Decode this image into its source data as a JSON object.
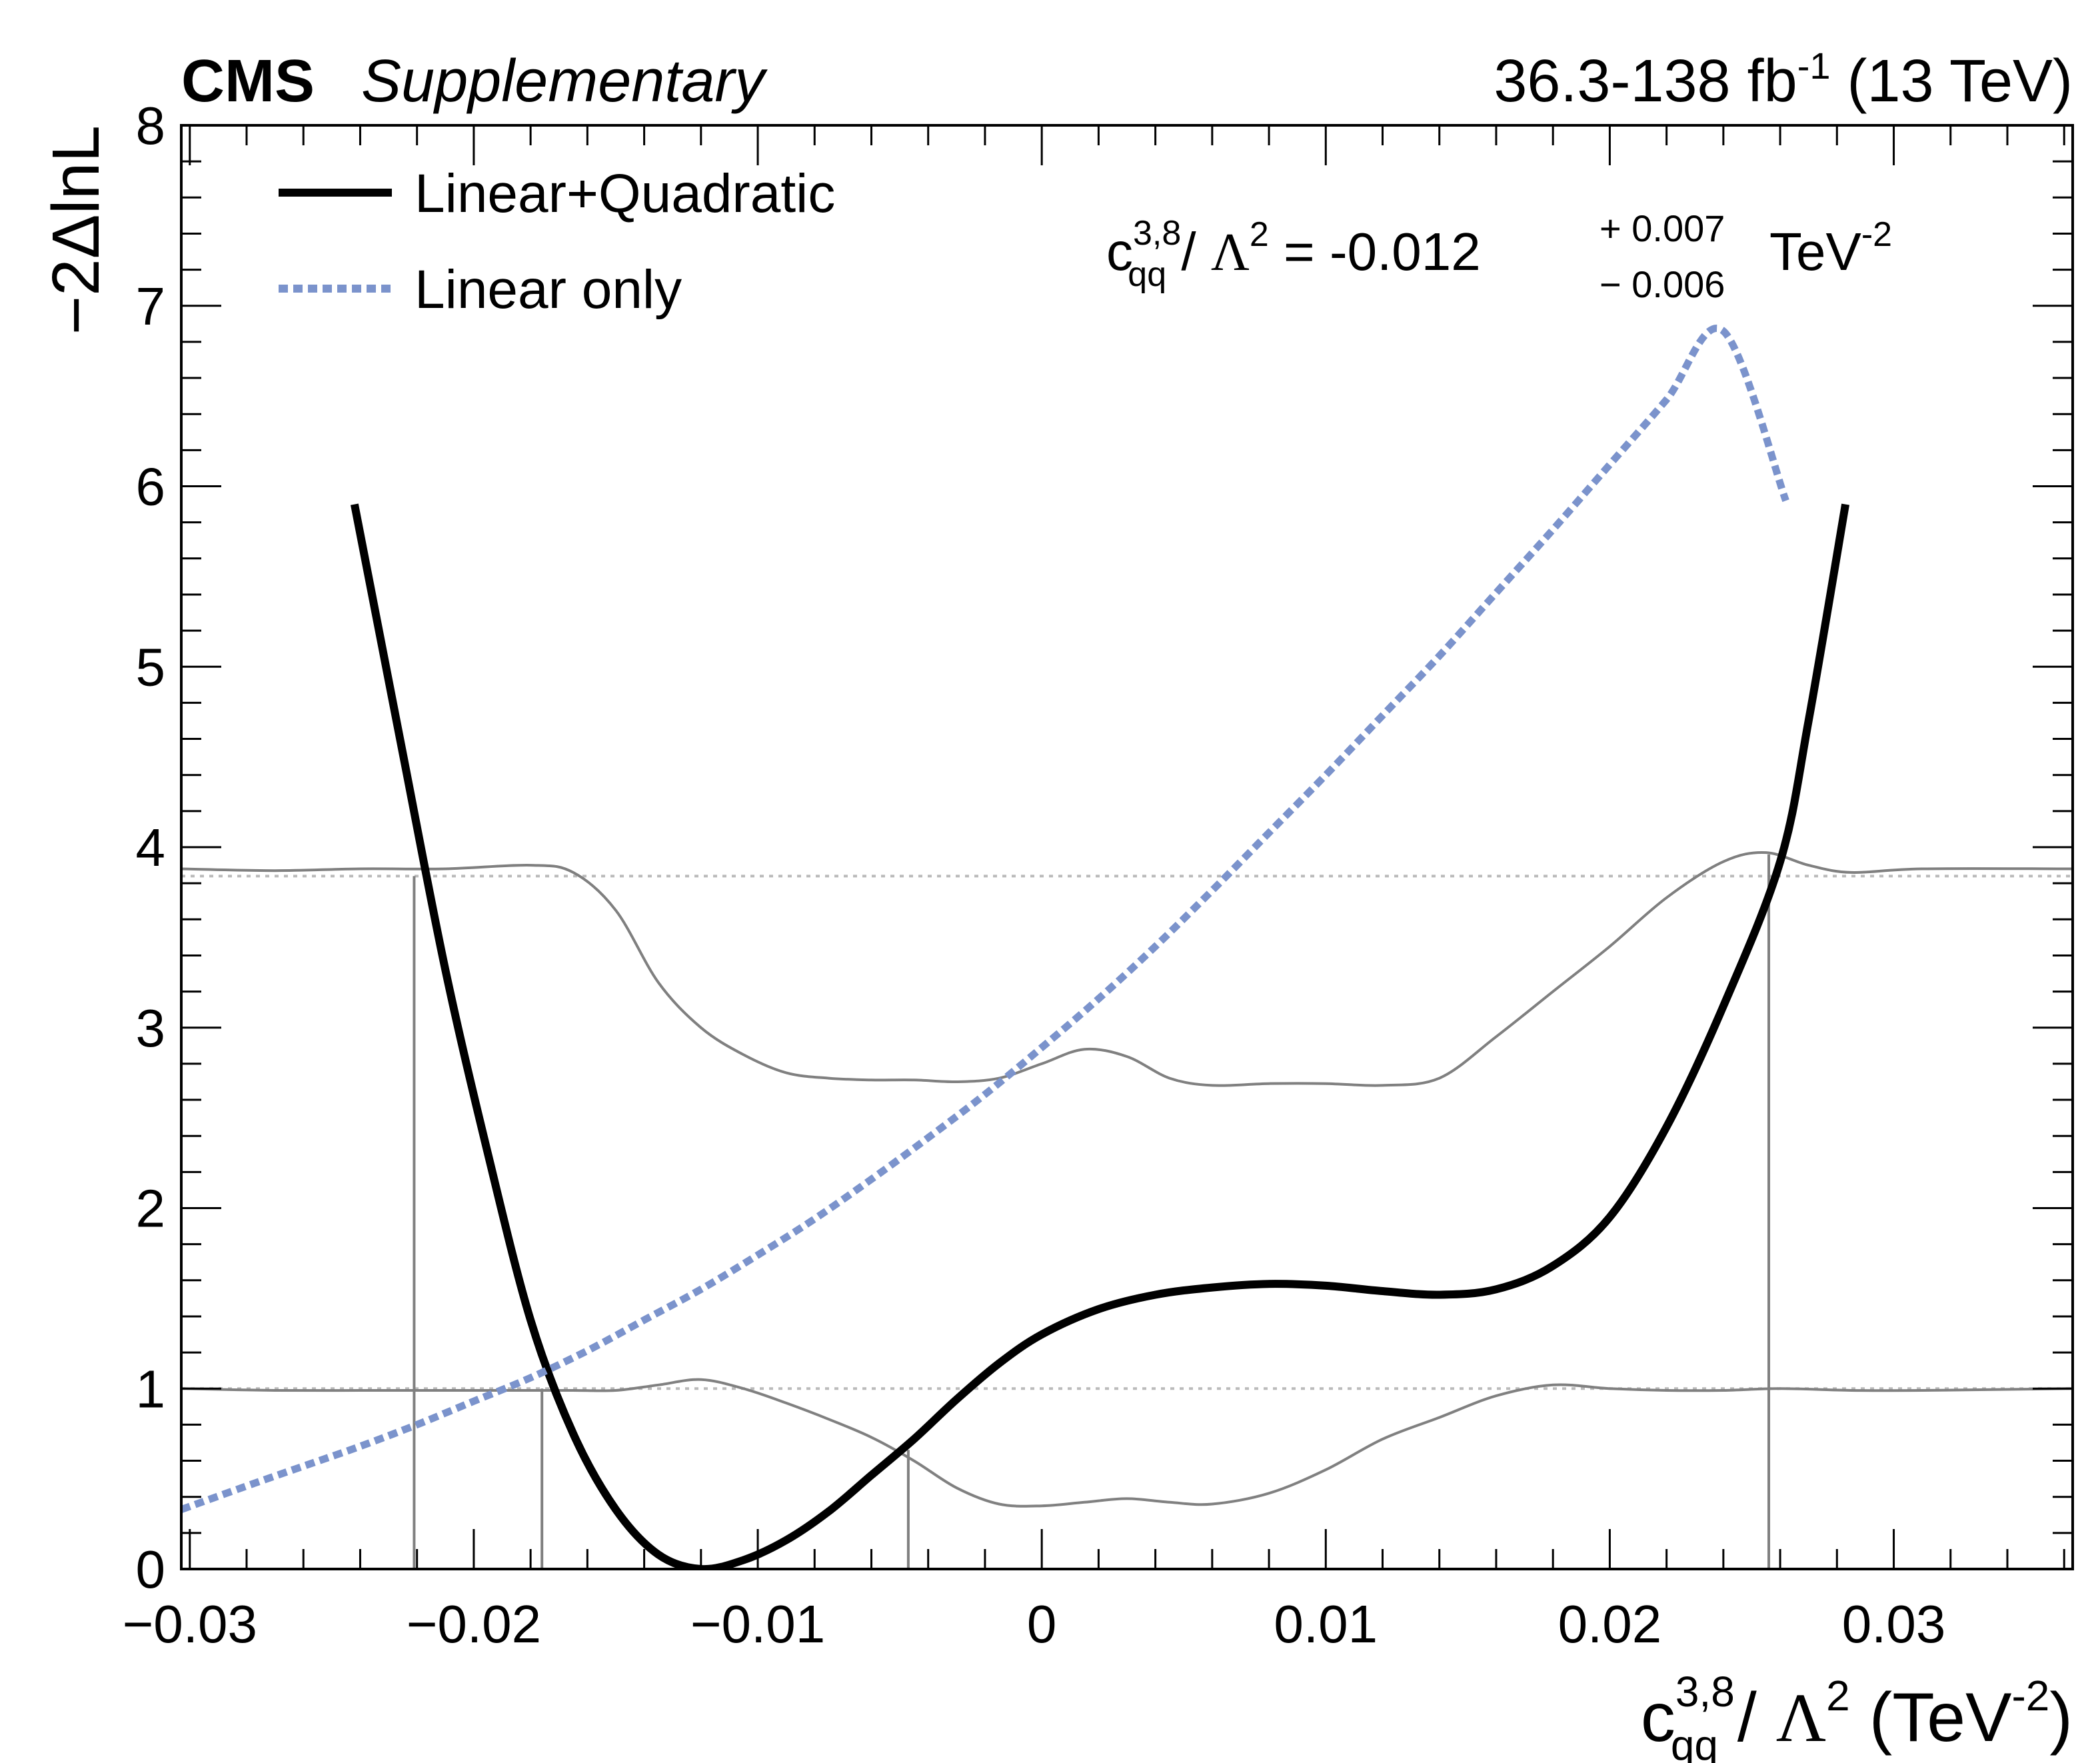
{
  "header": {
    "experiment": "CMS",
    "tag": "Supplementary",
    "lumi_range": "36.3-138 fb",
    "lumi_exp": "-1",
    "energy": " (13 TeV)"
  },
  "annotation": {
    "coef_base": "c",
    "coef_sup": "3,8",
    "coef_sub": "qq",
    "divider": " / ",
    "lambda": "Λ",
    "lambda_exp": "2",
    "equals_value": " = -0.012",
    "err_up": "+ 0.007",
    "err_down": "− 0.006",
    "unit": " TeV",
    "unit_exp": "-2"
  },
  "chart_data": {
    "type": "line",
    "xlabel": {
      "base": "c",
      "sup": "3,8",
      "sub": "qq",
      "rest": " / ",
      "lambda": "Λ",
      "lambda_exp": "2",
      "unit_open": " (TeV",
      "unit_exp": "-2",
      "unit_close": ")"
    },
    "ylabel": "−2ΔlnL",
    "xlim": [
      -0.0303,
      0.0363
    ],
    "ylim": [
      0,
      8
    ],
    "x_ticks": [
      {
        "value": -0.03,
        "label": "−0.03"
      },
      {
        "value": -0.02,
        "label": "−0.02"
      },
      {
        "value": -0.01,
        "label": "−0.01"
      },
      {
        "value": 0,
        "label": "0"
      },
      {
        "value": 0.01,
        "label": "0.01"
      },
      {
        "value": 0.02,
        "label": "0.02"
      },
      {
        "value": 0.03,
        "label": "0.03"
      }
    ],
    "y_ticks": [
      {
        "value": 0,
        "label": "0"
      },
      {
        "value": 1,
        "label": "1"
      },
      {
        "value": 2,
        "label": "2"
      },
      {
        "value": 3,
        "label": "3"
      },
      {
        "value": 4,
        "label": "4"
      },
      {
        "value": 5,
        "label": "5"
      },
      {
        "value": 6,
        "label": "6"
      },
      {
        "value": 7,
        "label": "7"
      },
      {
        "value": 8,
        "label": "8"
      }
    ],
    "legend_position": "top-left",
    "series": [
      {
        "name": "Linear+Quadratic",
        "color": "#000000",
        "style": "solid",
        "x": [
          -0.0242,
          -0.0225,
          -0.021,
          -0.0195,
          -0.018,
          -0.0165,
          -0.015,
          -0.0135,
          -0.012,
          -0.0105,
          -0.009,
          -0.0075,
          -0.006,
          -0.0045,
          -0.003,
          -0.0015,
          0.0,
          0.002,
          0.004,
          0.006,
          0.008,
          0.01,
          0.012,
          0.014,
          0.016,
          0.018,
          0.02,
          0.022,
          0.024,
          0.026,
          0.027,
          0.0283
        ],
        "y": [
          5.9,
          4.52,
          3.32,
          2.3,
          1.38,
          0.75,
          0.33,
          0.08,
          0.0,
          0.05,
          0.16,
          0.32,
          0.52,
          0.72,
          0.94,
          1.14,
          1.3,
          1.44,
          1.52,
          1.56,
          1.58,
          1.57,
          1.54,
          1.52,
          1.55,
          1.68,
          1.95,
          2.45,
          3.12,
          3.92,
          4.7,
          5.9
        ]
      },
      {
        "name": "Linear only",
        "color": "#7b93cc",
        "style": "dotted",
        "x": [
          -0.0303,
          -0.028,
          -0.026,
          -0.024,
          -0.022,
          -0.02,
          -0.018,
          -0.016,
          -0.014,
          -0.012,
          -0.01,
          -0.008,
          -0.006,
          -0.004,
          -0.002,
          0.0,
          0.002,
          0.004,
          0.006,
          0.008,
          0.01,
          0.012,
          0.014,
          0.016,
          0.018,
          0.02,
          0.022,
          0.024,
          0.0262
        ],
        "y": [
          0.33,
          0.46,
          0.57,
          0.68,
          0.8,
          0.93,
          1.06,
          1.21,
          1.38,
          1.55,
          1.74,
          1.94,
          2.16,
          2.39,
          2.63,
          2.89,
          3.16,
          3.45,
          3.76,
          4.08,
          4.4,
          4.73,
          5.06,
          5.41,
          5.76,
          6.12,
          6.48,
          6.86,
          5.92
        ]
      }
    ],
    "reference_lines": {
      "y_values": [
        1,
        3.84
      ],
      "color": "#bbbbbb"
    },
    "band_curves": {
      "color": "#808080",
      "upper": {
        "x": [
          -0.0303,
          -0.027,
          -0.024,
          -0.021,
          -0.018,
          -0.0165,
          -0.015,
          -0.0135,
          -0.012,
          -0.0105,
          -0.009,
          -0.0075,
          -0.006,
          -0.0045,
          -0.003,
          -0.0015,
          0.0,
          0.0015,
          0.003,
          0.0045,
          0.006,
          0.008,
          0.01,
          0.012,
          0.014,
          0.016,
          0.018,
          0.02,
          0.022,
          0.024,
          0.0255,
          0.027,
          0.0285,
          0.031,
          0.0363
        ],
        "y": [
          3.88,
          3.87,
          3.88,
          3.88,
          3.9,
          3.86,
          3.65,
          3.25,
          3.0,
          2.85,
          2.75,
          2.72,
          2.71,
          2.71,
          2.7,
          2.72,
          2.8,
          2.88,
          2.84,
          2.72,
          2.68,
          2.69,
          2.69,
          2.68,
          2.72,
          2.95,
          3.2,
          3.45,
          3.72,
          3.92,
          3.97,
          3.9,
          3.86,
          3.88,
          3.88
        ]
      },
      "lower": {
        "x": [
          -0.0303,
          -0.027,
          -0.024,
          -0.021,
          -0.018,
          -0.0165,
          -0.015,
          -0.0135,
          -0.012,
          -0.0105,
          -0.009,
          -0.0075,
          -0.006,
          -0.0045,
          -0.003,
          -0.0015,
          0.0,
          0.0015,
          0.003,
          0.0045,
          0.006,
          0.008,
          0.01,
          0.012,
          0.014,
          0.016,
          0.018,
          0.02,
          0.022,
          0.024,
          0.026,
          0.0285,
          0.031,
          0.0363
        ],
        "y": [
          1.0,
          0.99,
          0.99,
          0.99,
          0.99,
          0.99,
          0.99,
          1.02,
          1.05,
          1.0,
          0.92,
          0.83,
          0.73,
          0.6,
          0.45,
          0.36,
          0.35,
          0.37,
          0.39,
          0.37,
          0.36,
          0.42,
          0.55,
          0.72,
          0.84,
          0.96,
          1.02,
          1.0,
          0.99,
          0.99,
          1.0,
          0.99,
          0.99,
          1.0
        ]
      }
    },
    "interval_markers": [
      {
        "x": -0.0221,
        "y_top": 3.84
      },
      {
        "x": -0.0176,
        "y_top": 1.0
      },
      {
        "x": -0.0047,
        "y_top": 0.66
      },
      {
        "x": 0.0256,
        "y_top": 3.96
      }
    ]
  }
}
